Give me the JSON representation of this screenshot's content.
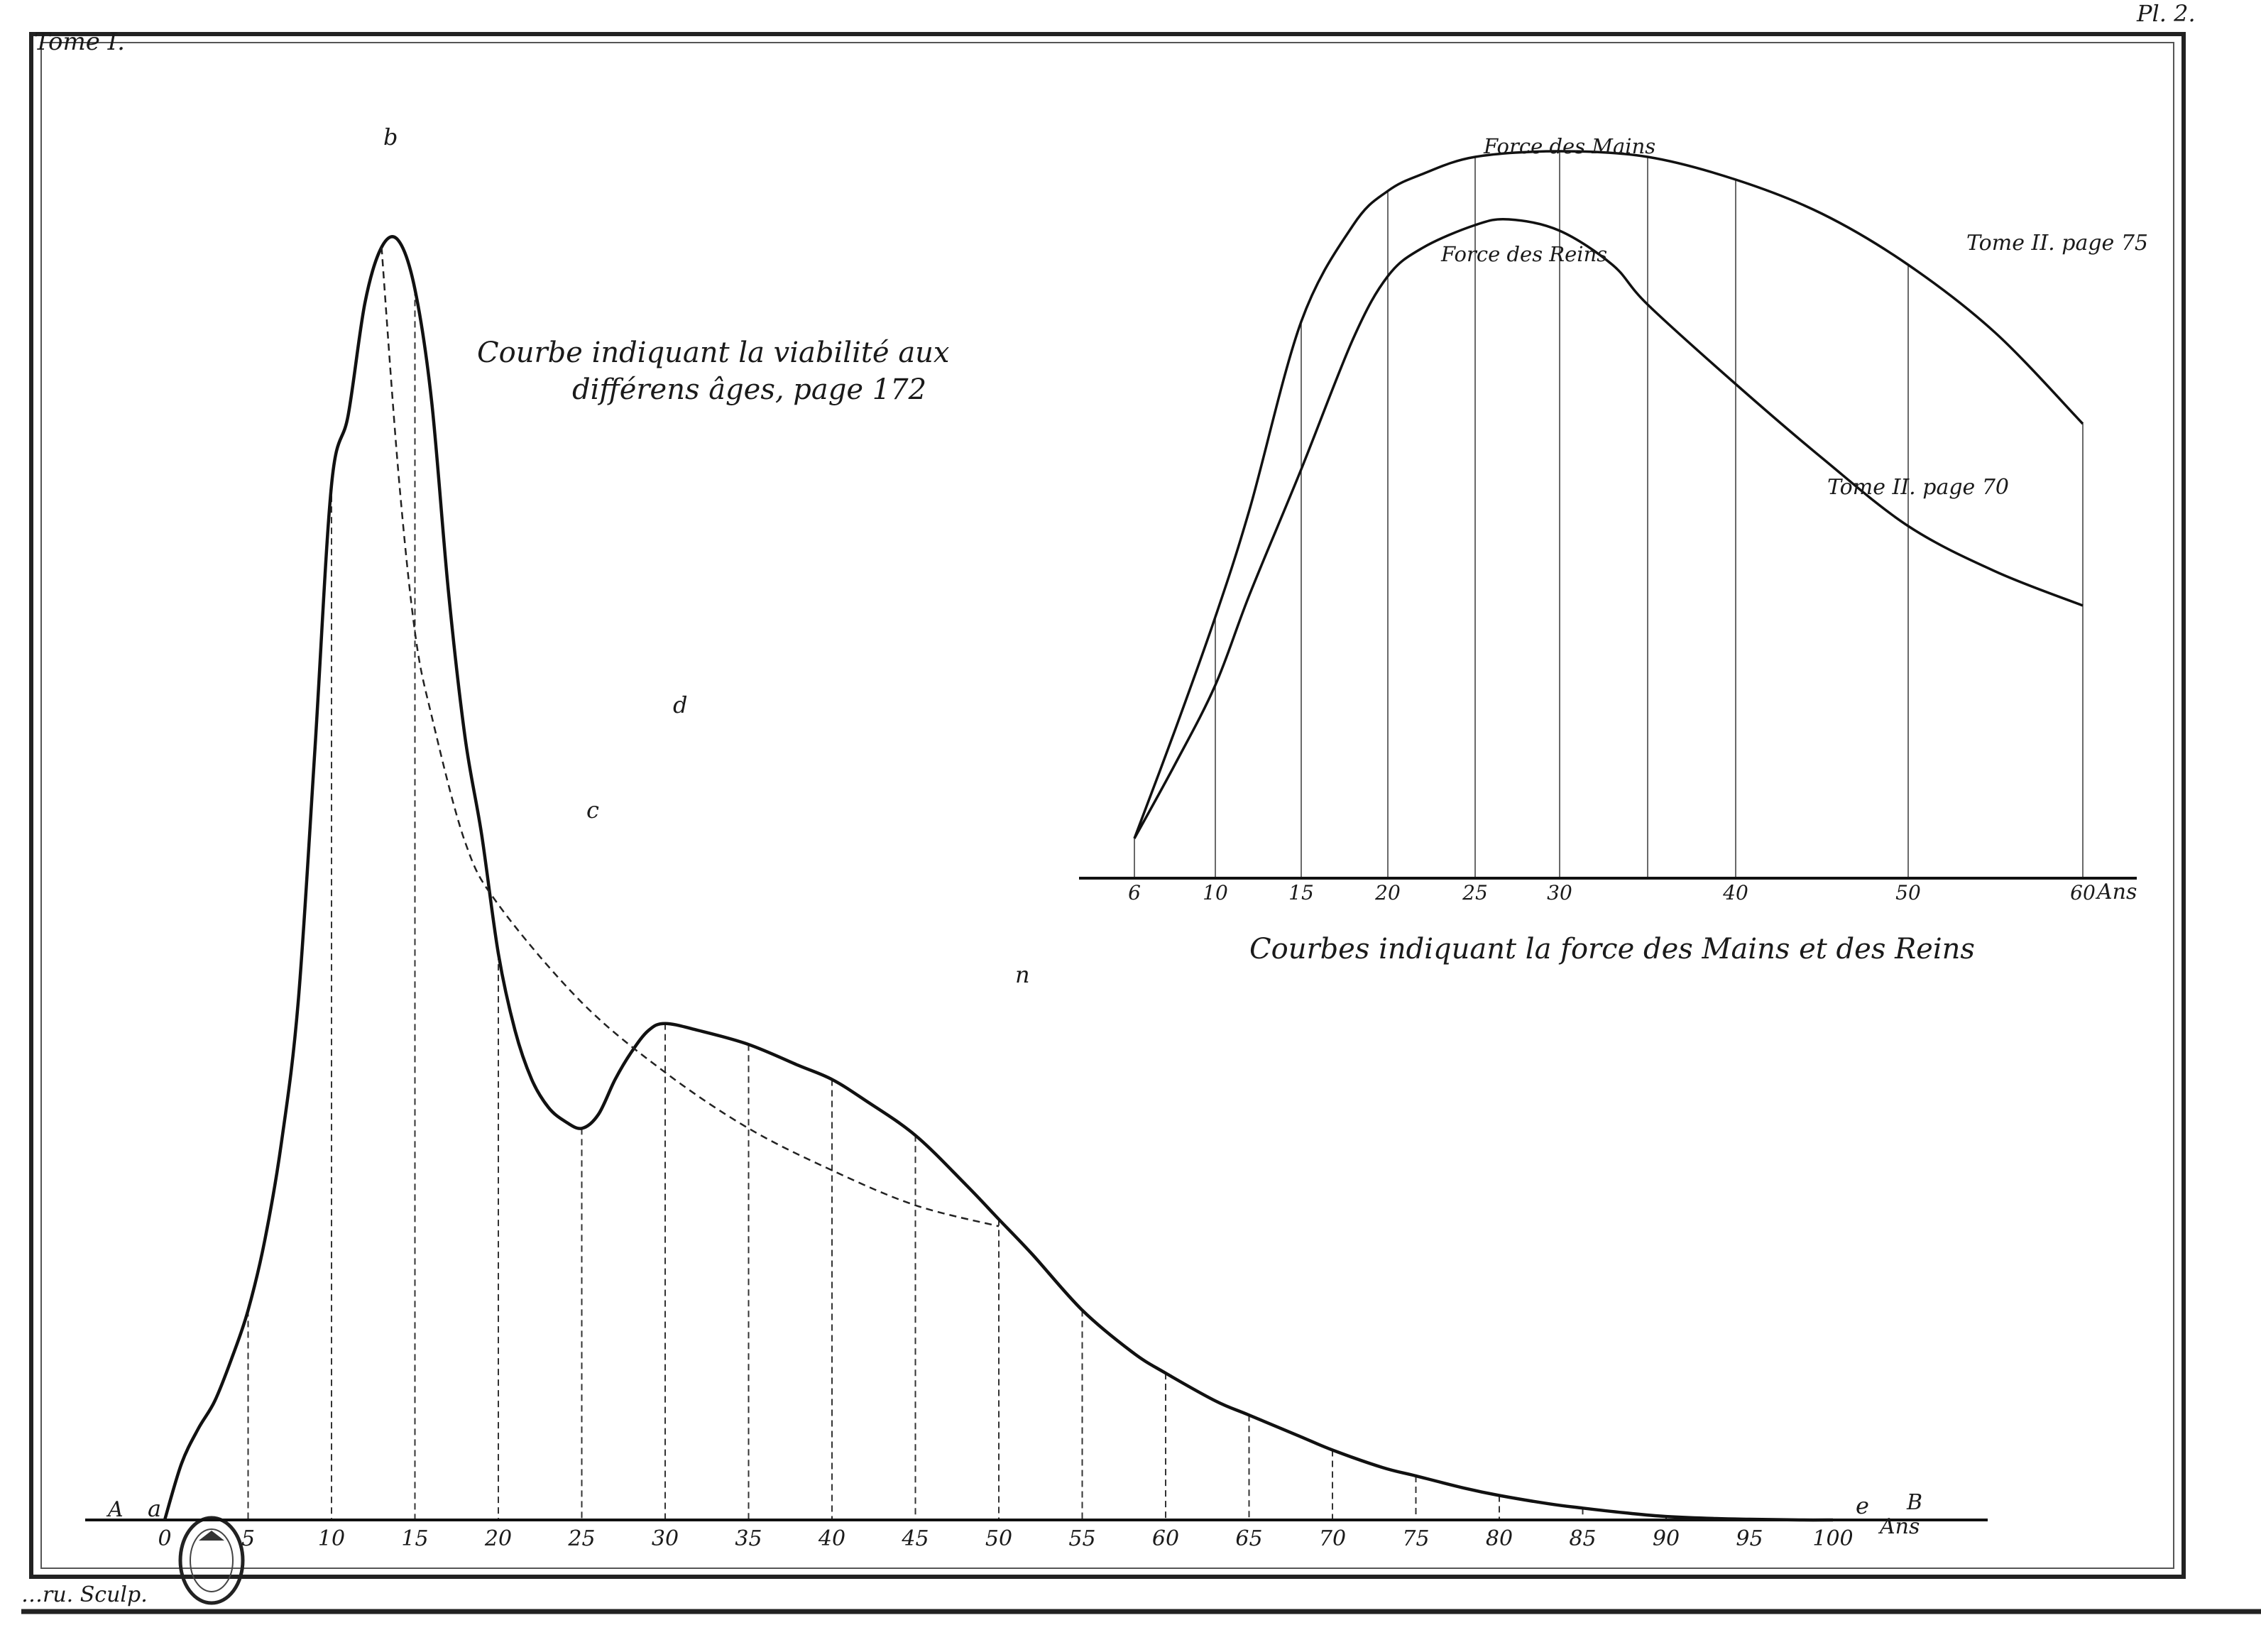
{
  "header": {
    "tome": "Tome I.",
    "plate": "Pl. 2."
  },
  "engraver": "…ru. Sculp.",
  "chart_data": [
    {
      "type": "line",
      "title": "Courbe indiquant la viabilité aux différens âges, page 172",
      "title_lines": [
        "Courbe indiquant la viabilité aux",
        "différens âges, page 172"
      ],
      "axis_end_labels": {
        "left": "A",
        "right": "B"
      },
      "x_unit": "Ans",
      "xlim": [
        0,
        100
      ],
      "x_ticks": [
        "0",
        "5",
        "10",
        "15",
        "20",
        "25",
        "30",
        "35",
        "40",
        "45",
        "50",
        "55",
        "60",
        "65",
        "70",
        "75",
        "80",
        "85",
        "90",
        "95",
        "100"
      ],
      "point_labels": [
        "a",
        "b",
        "c",
        "d",
        "n",
        "e"
      ],
      "series": [
        {
          "style": "solid",
          "x": [
            0,
            1,
            2,
            3,
            4,
            5,
            6,
            7,
            8,
            9,
            10,
            11,
            12,
            13,
            14,
            15,
            16,
            17,
            18,
            19,
            20,
            21,
            22,
            23,
            24,
            25,
            26,
            27,
            28,
            29,
            30,
            32,
            35,
            38,
            40,
            42,
            45,
            48,
            50,
            52,
            55,
            58,
            60,
            63,
            65,
            68,
            70,
            73,
            75,
            78,
            80,
            83,
            85,
            88,
            90,
            93,
            95,
            98,
            100
          ],
          "y": [
            0,
            8,
            13,
            17,
            23,
            30,
            40,
            54,
            74,
            110,
            148,
            158,
            174,
            182,
            183,
            176,
            160,
            133,
            112,
            98,
            81,
            70,
            63,
            59,
            57,
            56,
            58,
            63,
            67,
            70,
            71,
            70,
            68,
            65,
            63,
            60,
            55,
            48,
            43,
            38,
            30,
            24,
            21,
            17,
            15,
            12,
            10,
            7.5,
            6.3,
            4.5,
            3.5,
            2.3,
            1.7,
            0.9,
            0.5,
            0.2,
            0.1,
            0,
            0
          ]
        },
        {
          "style": "dashed",
          "x": [
            13,
            14,
            15,
            16,
            18,
            20,
            25,
            30,
            35,
            40,
            45,
            50
          ],
          "y": [
            182,
            150,
            127,
            115,
            97,
            88,
            74,
            64,
            56,
            50,
            45,
            42
          ]
        }
      ]
    },
    {
      "type": "line",
      "title": "Courbes indiquant la force des Mains et des Reins",
      "x_unit": "Ans",
      "x_ticks": [
        "6",
        "10",
        "15",
        "20",
        "25",
        "30",
        "40",
        "50",
        "60"
      ],
      "series": [
        {
          "name": "Force des Mains",
          "ref": "Tome II. page 75",
          "x": [
            6,
            8,
            10,
            12,
            15,
            18,
            20,
            22,
            25,
            30,
            35,
            40,
            45,
            50,
            55,
            60
          ],
          "y": [
            7,
            26,
            46,
            65,
            98,
            115,
            121,
            124,
            127,
            128,
            127,
            123,
            117,
            108,
            96,
            80
          ]
        },
        {
          "name": "Force des Reins",
          "ref": "Tome II. page 70",
          "x": [
            6,
            8,
            10,
            12,
            15,
            18,
            20,
            22,
            25,
            27,
            30,
            33,
            35,
            40,
            45,
            50,
            55,
            60
          ],
          "y": [
            7,
            20,
            34,
            50,
            72,
            95,
            106,
            111,
            115,
            116,
            114,
            108,
            101,
            87,
            74,
            62,
            54,
            48
          ]
        }
      ]
    }
  ]
}
